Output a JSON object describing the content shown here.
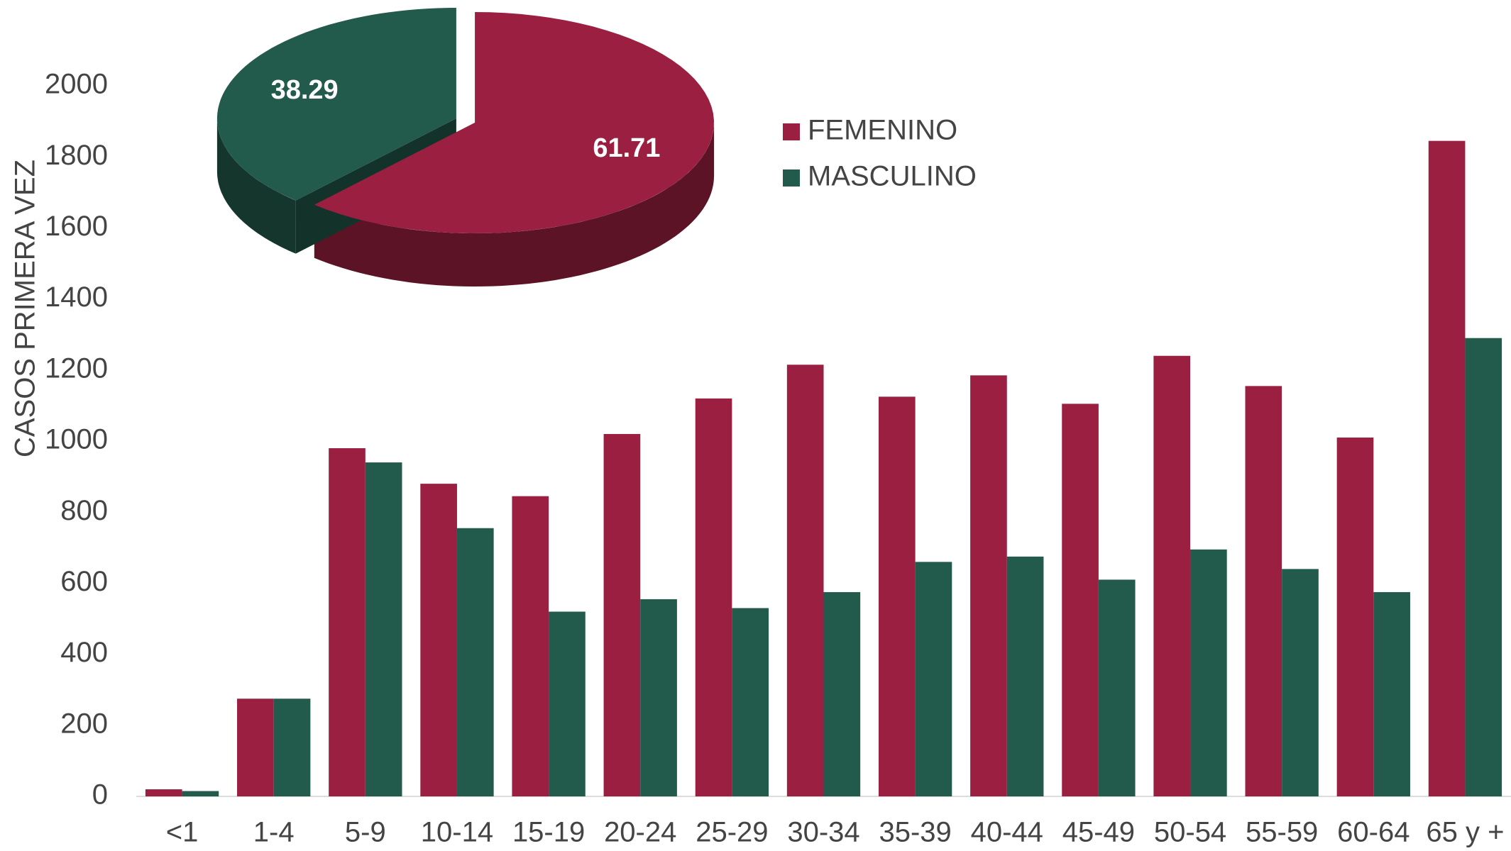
{
  "chart_data": [
    {
      "type": "bar",
      "y_label": "CASOS PRIMERA VEZ",
      "categories": [
        "<1",
        "1-4",
        "5-9",
        "10-14",
        "15-19",
        "20-24",
        "25-29",
        "30-34",
        "35-39",
        "40-44",
        "45-49",
        "50-54",
        "55-59",
        "60-64",
        "65 y +"
      ],
      "series": [
        {
          "name": "FEMENINO",
          "color": "#9b1f40",
          "values": [
            20,
            275,
            980,
            880,
            845,
            1020,
            1120,
            1215,
            1125,
            1185,
            1105,
            1240,
            1155,
            1010,
            1845
          ]
        },
        {
          "name": "MASCULINO",
          "color": "#225a4b",
          "values": [
            15,
            275,
            940,
            755,
            520,
            555,
            530,
            575,
            660,
            675,
            610,
            695,
            640,
            575,
            1290
          ]
        }
      ],
      "ylim": [
        0,
        2000
      ],
      "yticks": [
        0,
        200,
        400,
        600,
        800,
        1000,
        1200,
        1400,
        1600,
        1800,
        2000
      ],
      "legend": "top-right"
    },
    {
      "type": "pie",
      "values": [
        61.71,
        38.29
      ],
      "colors": [
        "#9b1f40",
        "#225a4b"
      ]
    }
  ]
}
